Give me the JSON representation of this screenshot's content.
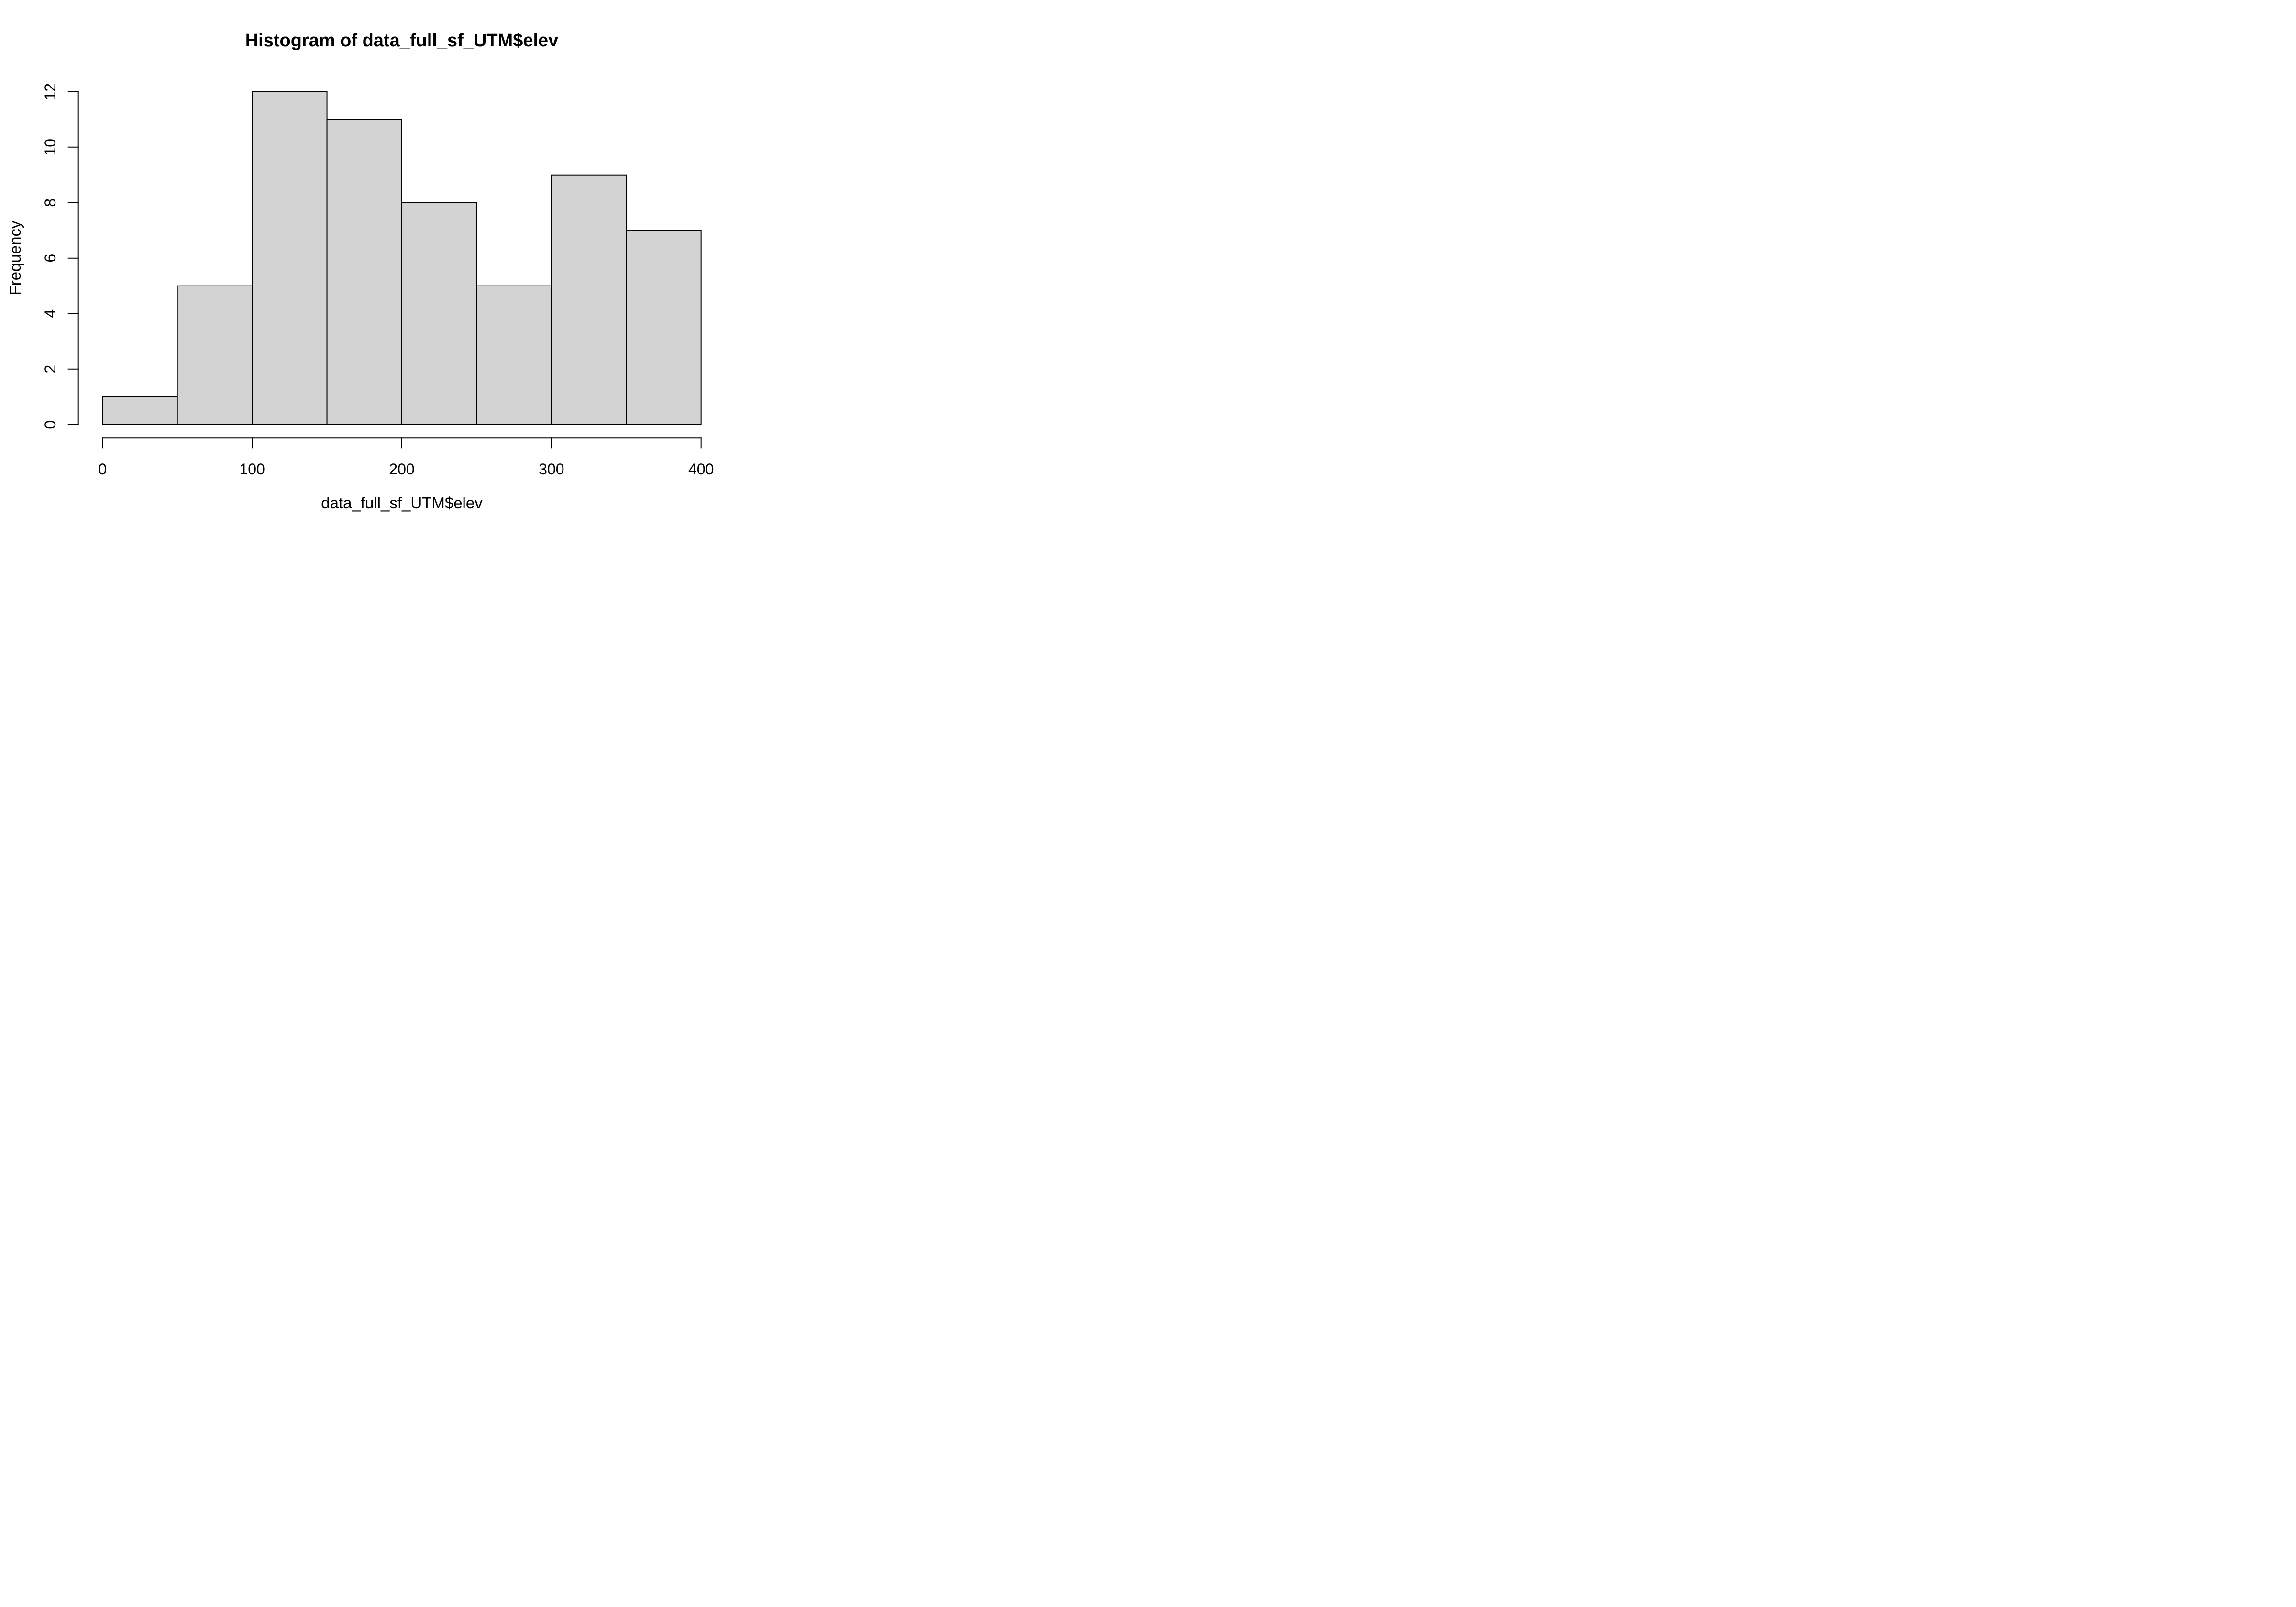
{
  "figure": {
    "background": "#ffffff"
  },
  "chart_data": {
    "type": "bar",
    "subtype": "histogram",
    "title": "Histogram of data_full_sf_UTM$elev",
    "xlabel": "data_full_sf_UTM$elev",
    "ylabel": "Frequency",
    "bin_edges": [
      0,
      50,
      100,
      150,
      200,
      250,
      300,
      350,
      400
    ],
    "frequencies": [
      1,
      5,
      12,
      11,
      8,
      5,
      9,
      7
    ],
    "x_ticks": [
      0,
      100,
      200,
      300,
      400
    ],
    "y_ticks": [
      0,
      2,
      4,
      6,
      8,
      10,
      12
    ],
    "xlim": [
      0,
      400
    ],
    "ylim": [
      0,
      12
    ],
    "grid": false,
    "legend": false,
    "bar_fill": "#d3d3d3",
    "bar_stroke": "#000000",
    "axis_color": "#000000",
    "text_color": "#000000"
  }
}
